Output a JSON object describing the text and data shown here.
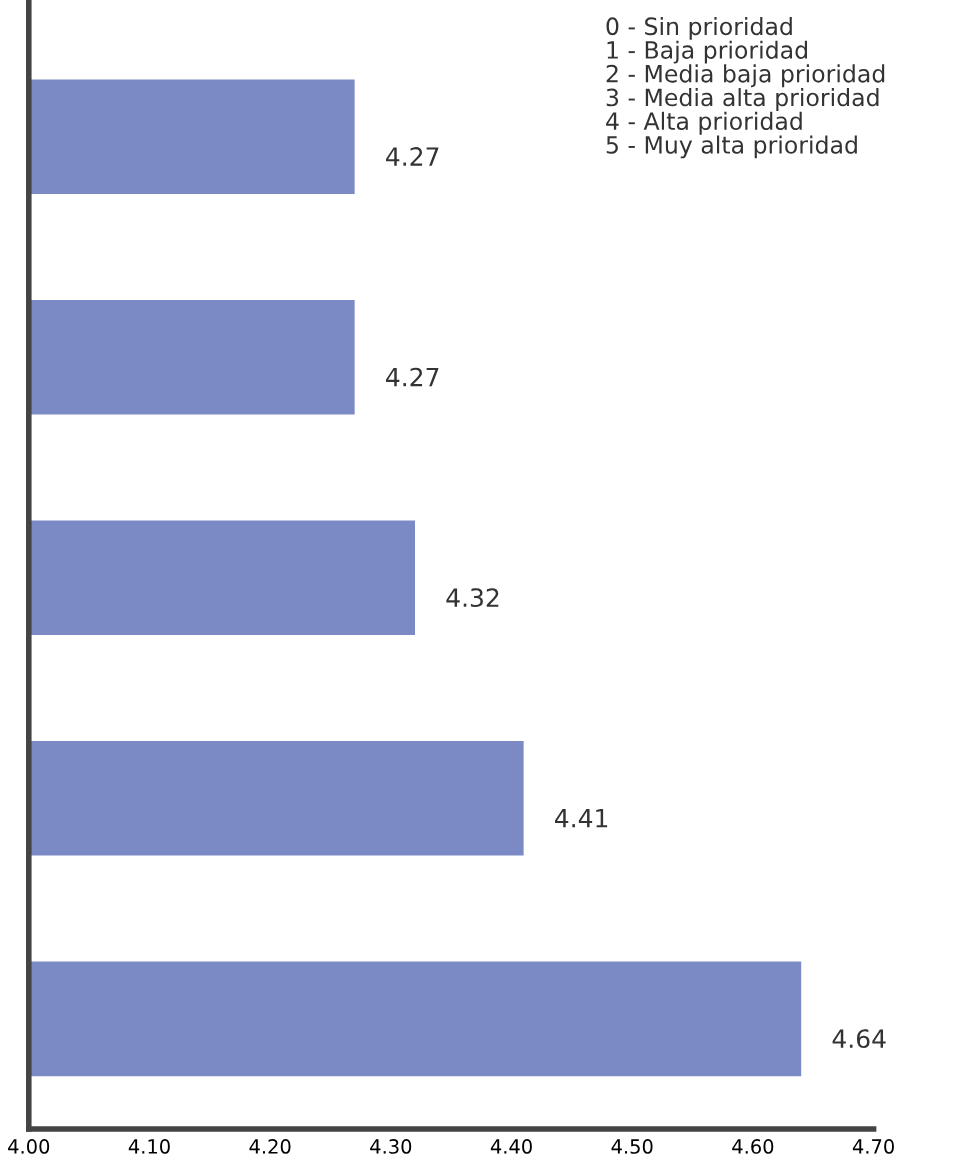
{
  "chart_data": {
    "type": "bar",
    "orientation": "horizontal",
    "categories": [
      null,
      null,
      null,
      null,
      null
    ],
    "values": [
      4.27,
      4.27,
      4.32,
      4.41,
      4.64
    ],
    "color": "#7b89c4",
    "data_labels": true,
    "xlim": [
      4.0,
      4.7
    ],
    "xticks": [
      {
        "value": 4.0,
        "label": "4.00"
      },
      {
        "value": 4.1,
        "label": "4.10"
      },
      {
        "value": 4.2,
        "label": "4.20"
      },
      {
        "value": 4.3,
        "label": "4.30"
      },
      {
        "value": 4.4,
        "label": "4.40"
      },
      {
        "value": 4.5,
        "label": "4.50"
      },
      {
        "value": 4.6,
        "label": "4.60"
      },
      {
        "value": 4.7,
        "label": "4.70"
      }
    ],
    "grid": false,
    "legend": false,
    "annotations": [
      "0 - Sin prioridad",
      "1 - Baja prioridad",
      "2 - Media baja prioridad",
      "3 - Media alta prioridad",
      "4 - Alta prioridad",
      "5 - Muy alta prioridad"
    ]
  }
}
